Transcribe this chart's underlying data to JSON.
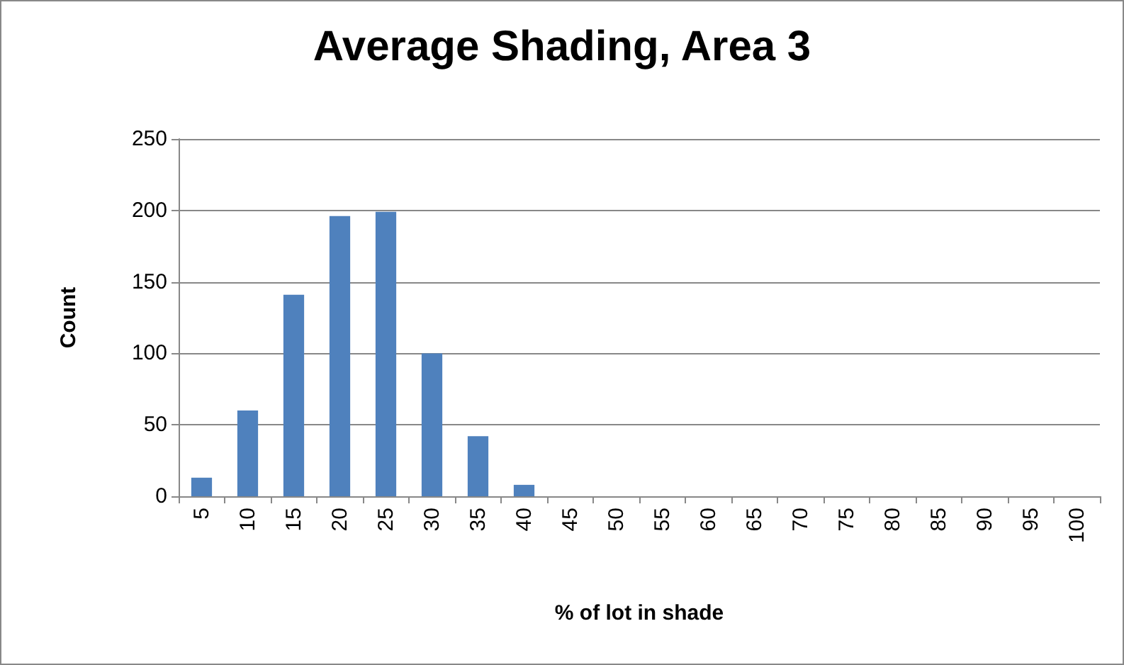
{
  "chart_data": {
    "type": "bar",
    "title": "Average Shading, Area 3",
    "xlabel": "% of lot in shade",
    "ylabel": "Count",
    "categories": [
      "5",
      "10",
      "15",
      "20",
      "25",
      "30",
      "35",
      "40",
      "45",
      "50",
      "55",
      "60",
      "65",
      "70",
      "75",
      "80",
      "85",
      "90",
      "95",
      "100"
    ],
    "values": [
      13,
      60,
      141,
      196,
      199,
      100,
      42,
      8,
      0,
      0,
      0,
      0,
      0,
      0,
      0,
      0,
      0,
      0,
      0,
      0
    ],
    "color": "#4f81bd",
    "ylim": [
      0,
      250
    ],
    "yticks": [
      0,
      50,
      100,
      150,
      200,
      250
    ],
    "grid": "y"
  }
}
